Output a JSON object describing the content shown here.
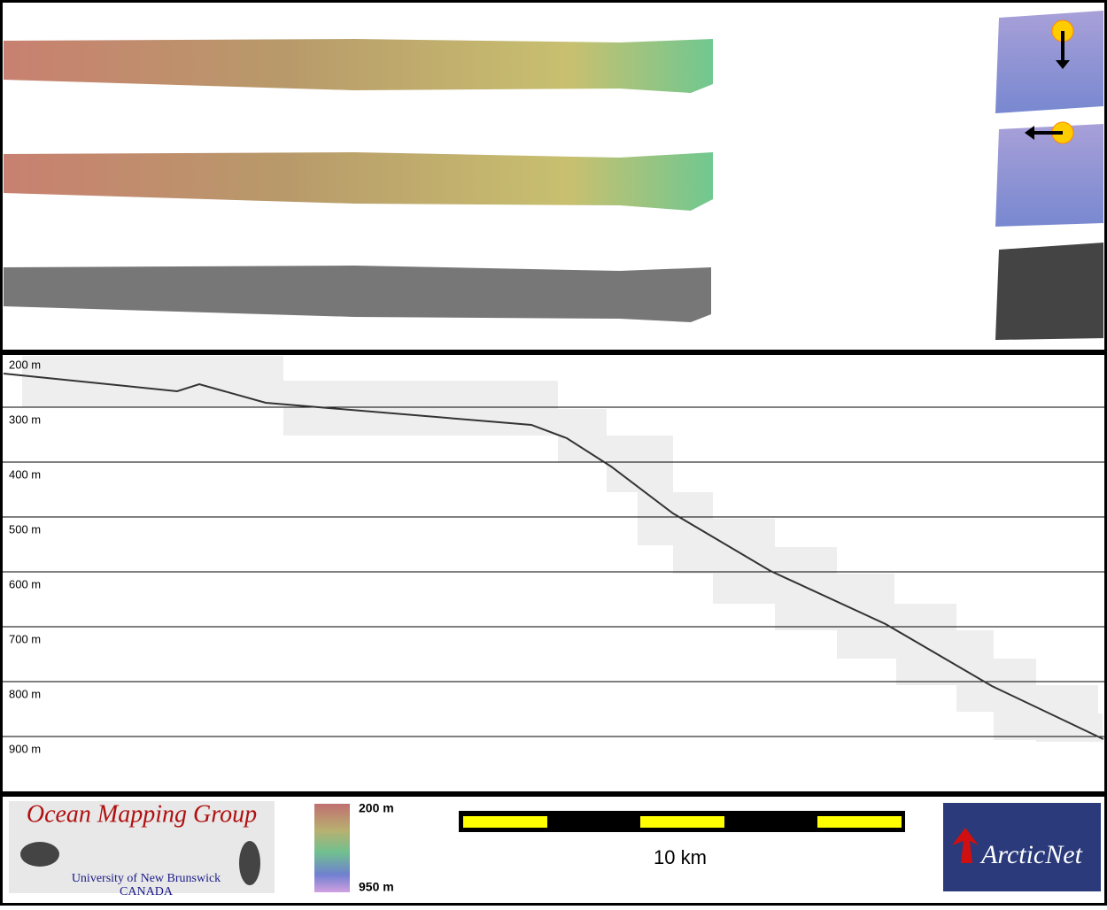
{
  "profile": {
    "depth_labels": [
      "200 m",
      "300 m",
      "400 m",
      "500 m",
      "600 m",
      "700 m",
      "800 m",
      "900 m"
    ]
  },
  "legend": {
    "color_top": "200 m",
    "color_bottom": "950 m",
    "scale_bar": "10 km"
  },
  "logos": {
    "omg_title": "Ocean Mapping Group",
    "omg_line1": "University of New Brunswick",
    "omg_line2": "CANADA",
    "arcticnet": "ArcticNet"
  }
}
